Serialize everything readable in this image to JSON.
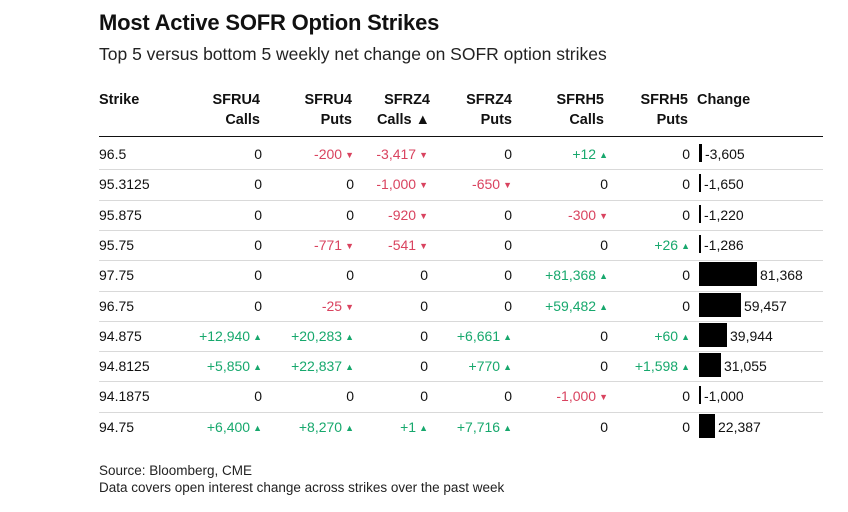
{
  "title": "Most Active SOFR Option Strikes",
  "subtitle": "Top 5 versus bottom 5 weekly net change on SOFR option strikes",
  "columns": [
    {
      "line1": "",
      "line2": "Strike"
    },
    {
      "line1": "SFRU4",
      "line2": "Calls"
    },
    {
      "line1": "SFRU4",
      "line2": "Puts"
    },
    {
      "line1": "SFRZ4",
      "line2": "Calls ▲"
    },
    {
      "line1": "SFRZ4",
      "line2": "Puts"
    },
    {
      "line1": "SFRH5",
      "line2": "Calls"
    },
    {
      "line1": "SFRH5",
      "line2": "Puts"
    },
    {
      "line1": "",
      "line2": "Change"
    }
  ],
  "colors": {
    "positive": "#17a86d",
    "negative": "#d9435f",
    "bar": "#000000"
  },
  "chart_data": {
    "type": "table",
    "title": "Most Active SOFR Option Strikes",
    "subtitle": "Top 5 versus bottom 5 weekly net change on SOFR option strikes",
    "headers": [
      "Strike",
      "SFRU4 Calls",
      "SFRU4 Puts",
      "SFRZ4 Calls ▲",
      "SFRZ4 Puts",
      "SFRH5 Calls",
      "SFRH5 Puts",
      "Change"
    ],
    "rows": [
      {
        "strike": "96.5",
        "cells": [
          "0",
          "-200",
          "-3,417",
          "0",
          "+12",
          "0"
        ],
        "change": -3605,
        "change_label": "-3,605"
      },
      {
        "strike": "95.3125",
        "cells": [
          "0",
          "0",
          "-1,000",
          "-650",
          "0",
          "0"
        ],
        "change": -1650,
        "change_label": "-1,650"
      },
      {
        "strike": "95.875",
        "cells": [
          "0",
          "0",
          "-920",
          "0",
          "-300",
          "0"
        ],
        "change": -1220,
        "change_label": "-1,220"
      },
      {
        "strike": "95.75",
        "cells": [
          "0",
          "-771",
          "-541",
          "0",
          "0",
          "+26"
        ],
        "change": -1286,
        "change_label": "-1,286"
      },
      {
        "strike": "97.75",
        "cells": [
          "0",
          "0",
          "0",
          "0",
          "+81,368",
          "0"
        ],
        "change": 81368,
        "change_label": "81,368"
      },
      {
        "strike": "96.75",
        "cells": [
          "0",
          "-25",
          "0",
          "0",
          "+59,482",
          "0"
        ],
        "change": 59457,
        "change_label": "59,457"
      },
      {
        "strike": "94.875",
        "cells": [
          "+12,940",
          "+20,283",
          "0",
          "+6,661",
          "0",
          "+60"
        ],
        "change": 39944,
        "change_label": "39,944"
      },
      {
        "strike": "94.8125",
        "cells": [
          "+5,850",
          "+22,837",
          "0",
          "+770",
          "0",
          "+1,598"
        ],
        "change": 31055,
        "change_label": "31,055"
      },
      {
        "strike": "94.1875",
        "cells": [
          "0",
          "0",
          "0",
          "0",
          "-1,000",
          "0"
        ],
        "change": -1000,
        "change_label": "-1,000"
      },
      {
        "strike": "94.75",
        "cells": [
          "+6,400",
          "+8,270",
          "+1",
          "+7,716",
          "0",
          "0"
        ],
        "change": 22387,
        "change_label": "22,387"
      }
    ]
  },
  "footer": {
    "source": "Source: Bloomberg, CME",
    "note": "Data covers open interest change across strikes over the past week"
  }
}
